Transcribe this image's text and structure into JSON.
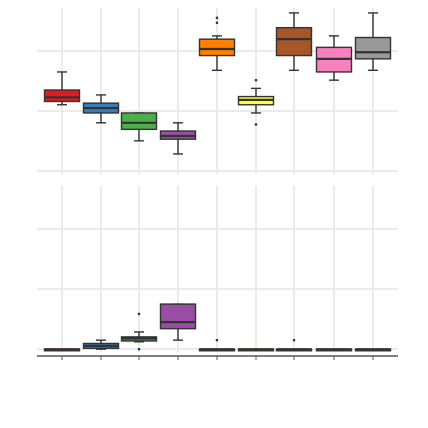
{
  "chart_data": [
    {
      "type": "boxplot",
      "panel": "top",
      "grid": true,
      "legend": "none",
      "ylim": [
        0,
        10
      ],
      "colors": [
        "#e41a1c",
        "#377eb8",
        "#4daf4a",
        "#984ea3",
        "#ff7f00",
        "#ffff33",
        "#a65628",
        "#f781bf",
        "#999999"
      ],
      "boxes": [
        {
          "min": 4.1,
          "q1": 4.3,
          "median": 4.55,
          "q3": 5.0,
          "max": 6.1,
          "outliers": []
        },
        {
          "min": 3.0,
          "q1": 3.6,
          "median": 3.9,
          "q3": 4.2,
          "max": 4.7,
          "outliers": []
        },
        {
          "min": 1.9,
          "q1": 2.6,
          "median": 3.0,
          "q3": 3.6,
          "max": 3.6,
          "outliers": []
        },
        {
          "min": 1.1,
          "q1": 2.0,
          "median": 2.2,
          "q3": 2.5,
          "max": 3.0,
          "outliers": []
        },
        {
          "min": 6.2,
          "q1": 7.1,
          "median": 7.5,
          "q3": 8.1,
          "max": 8.3,
          "outliers": [
            9.1,
            9.4
          ]
        },
        {
          "min": 3.6,
          "q1": 4.1,
          "median": 4.4,
          "q3": 4.6,
          "max": 5.1,
          "outliers": [
            2.9,
            5.6
          ]
        },
        {
          "min": 6.2,
          "q1": 7.1,
          "median": 8.1,
          "q3": 8.8,
          "max": 9.7,
          "outliers": []
        },
        {
          "min": 5.6,
          "q1": 6.1,
          "median": 6.9,
          "q3": 7.6,
          "max": 8.3,
          "outliers": []
        },
        {
          "min": 6.2,
          "q1": 6.9,
          "median": 7.3,
          "q3": 8.2,
          "max": 9.7,
          "outliers": []
        }
      ]
    },
    {
      "type": "boxplot",
      "panel": "bottom",
      "grid": true,
      "legend": "none",
      "ylim": [
        0,
        10
      ],
      "colors": [
        "#e41a1c",
        "#377eb8",
        "#4daf4a",
        "#984ea3",
        "#ff7f00",
        "#ffff33",
        "#a65628",
        "#f781bf",
        "#999999"
      ],
      "boxes": [
        {
          "min": 0.05,
          "q1": 0.05,
          "median": 0.05,
          "q3": 0.05,
          "max": 0.05,
          "outliers": []
        },
        {
          "min": 0.05,
          "q1": 0.1,
          "median": 0.25,
          "q3": 0.4,
          "max": 0.6,
          "outliers": []
        },
        {
          "min": 0.5,
          "q1": 0.55,
          "median": 0.7,
          "q3": 0.8,
          "max": 1.1,
          "outliers": [
            0.05,
            2.2
          ]
        },
        {
          "min": 0.6,
          "q1": 1.3,
          "median": 1.7,
          "q3": 2.8,
          "max": 2.8,
          "outliers": []
        },
        {
          "min": 0.05,
          "q1": 0.05,
          "median": 0.05,
          "q3": 0.05,
          "max": 0.05,
          "outliers": [
            0.6
          ]
        },
        {
          "min": 0.05,
          "q1": 0.05,
          "median": 0.05,
          "q3": 0.05,
          "max": 0.05,
          "outliers": []
        },
        {
          "min": 0.05,
          "q1": 0.05,
          "median": 0.05,
          "q3": 0.05,
          "max": 0.05,
          "outliers": [
            0.6
          ]
        },
        {
          "min": 0.05,
          "q1": 0.05,
          "median": 0.05,
          "q3": 0.05,
          "max": 0.05,
          "outliers": []
        },
        {
          "min": 0.05,
          "q1": 0.05,
          "median": 0.05,
          "q3": 0.05,
          "max": 0.05,
          "outliers": []
        }
      ]
    }
  ]
}
